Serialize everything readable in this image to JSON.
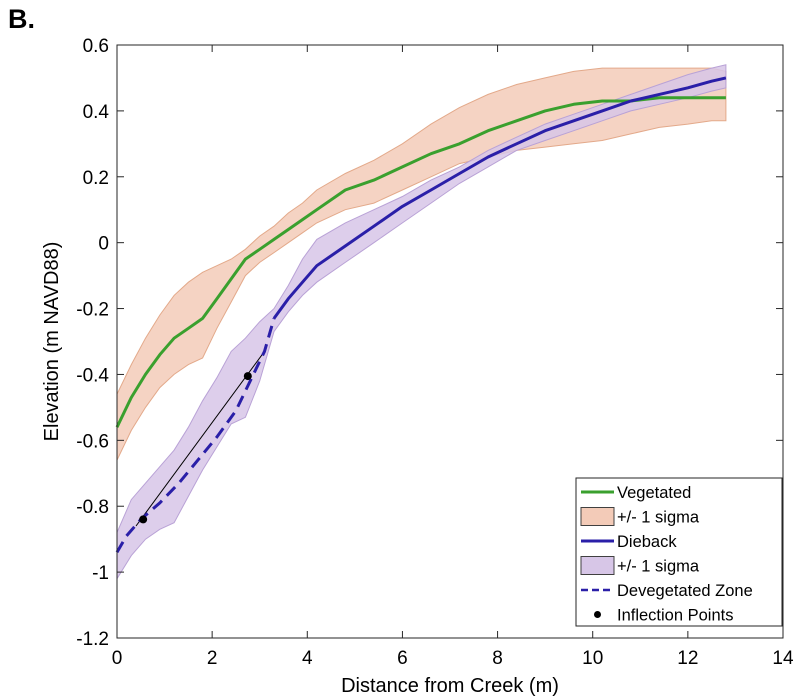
{
  "panel_label": "B.",
  "chart_data": {
    "type": "line",
    "xlabel": "Distance from Creek (m)",
    "ylabel": "Elevation (m NAVD88)",
    "xlim": [
      0,
      14
    ],
    "ylim": [
      -1.2,
      0.6
    ],
    "xticks": [
      0,
      2,
      4,
      6,
      8,
      10,
      12,
      14
    ],
    "yticks": [
      -1.2,
      -1,
      -0.8,
      -0.6,
      -0.4,
      -0.2,
      0,
      0.2,
      0.4,
      0.6
    ],
    "xtick_labels": [
      "0",
      "2",
      "4",
      "6",
      "8",
      "10",
      "12",
      "14"
    ],
    "ytick_labels": [
      "-1.2",
      "-1",
      "-0.8",
      "-0.6",
      "-0.4",
      "-0.2",
      "0",
      "0.2",
      "0.4",
      "0.6"
    ],
    "grid": false,
    "legend_position": "bottom-right",
    "series": [
      {
        "name": "Vegetated",
        "kind": "line",
        "color": "#3aa02e",
        "x": [
          0,
          0.3,
          0.6,
          0.9,
          1.2,
          1.5,
          1.8,
          2.1,
          2.4,
          2.7,
          3.0,
          3.3,
          3.6,
          3.9,
          4.2,
          4.8,
          5.4,
          6.0,
          6.6,
          7.2,
          7.8,
          8.4,
          9.0,
          9.6,
          10.2,
          10.8,
          11.4,
          12.0,
          12.5,
          12.8
        ],
        "y": [
          -0.56,
          -0.47,
          -0.4,
          -0.34,
          -0.29,
          -0.26,
          -0.23,
          -0.17,
          -0.11,
          -0.05,
          -0.02,
          0.01,
          0.04,
          0.07,
          0.1,
          0.16,
          0.19,
          0.23,
          0.27,
          0.3,
          0.34,
          0.37,
          0.4,
          0.42,
          0.43,
          0.43,
          0.44,
          0.44,
          0.44,
          0.44
        ]
      },
      {
        "name": "+/- 1 sigma",
        "kind": "band",
        "fill": "#f3cbb8",
        "edge": "#e3a98a",
        "x": [
          0,
          0.3,
          0.6,
          0.9,
          1.2,
          1.5,
          1.8,
          2.1,
          2.4,
          2.7,
          3.0,
          3.3,
          3.6,
          3.9,
          4.2,
          4.8,
          5.4,
          6.0,
          6.6,
          7.2,
          7.8,
          8.4,
          9.0,
          9.6,
          10.2,
          10.8,
          11.4,
          12.0,
          12.5,
          12.8
        ],
        "upper": [
          -0.46,
          -0.37,
          -0.29,
          -0.22,
          -0.16,
          -0.12,
          -0.09,
          -0.07,
          -0.05,
          -0.02,
          0.02,
          0.05,
          0.09,
          0.12,
          0.16,
          0.21,
          0.25,
          0.3,
          0.36,
          0.41,
          0.45,
          0.48,
          0.5,
          0.52,
          0.53,
          0.53,
          0.53,
          0.53,
          0.53,
          0.52
        ],
        "lower": [
          -0.66,
          -0.57,
          -0.5,
          -0.44,
          -0.4,
          -0.37,
          -0.35,
          -0.26,
          -0.18,
          -0.1,
          -0.06,
          -0.03,
          0.0,
          0.03,
          0.06,
          0.1,
          0.12,
          0.16,
          0.2,
          0.24,
          0.26,
          0.28,
          0.29,
          0.3,
          0.31,
          0.33,
          0.35,
          0.36,
          0.37,
          0.37
        ]
      },
      {
        "name": "Dieback",
        "kind": "line",
        "color": "#2a1fa8",
        "x": [
          3.3,
          3.6,
          3.9,
          4.2,
          4.8,
          5.4,
          6.0,
          6.6,
          7.2,
          7.8,
          8.4,
          9.0,
          9.6,
          10.2,
          10.8,
          11.4,
          12.0,
          12.5,
          12.8
        ],
        "y": [
          -0.23,
          -0.17,
          -0.12,
          -0.07,
          -0.01,
          0.05,
          0.11,
          0.16,
          0.21,
          0.26,
          0.3,
          0.34,
          0.37,
          0.4,
          0.43,
          0.45,
          0.47,
          0.49,
          0.5
        ]
      },
      {
        "name": "+/- 1 sigma",
        "kind": "band",
        "fill": "#d7c6e7",
        "edge": "#b9a2d6",
        "x": [
          0,
          0.3,
          0.6,
          0.9,
          1.2,
          1.5,
          1.8,
          2.1,
          2.4,
          2.7,
          3.0,
          3.3,
          3.6,
          3.9,
          4.2,
          4.8,
          5.4,
          6.0,
          6.6,
          7.2,
          7.8,
          8.4,
          9.0,
          9.6,
          10.2,
          10.8,
          11.4,
          12.0,
          12.5,
          12.8
        ],
        "upper": [
          -0.88,
          -0.78,
          -0.73,
          -0.68,
          -0.63,
          -0.56,
          -0.48,
          -0.41,
          -0.33,
          -0.29,
          -0.24,
          -0.2,
          -0.13,
          -0.05,
          0.01,
          0.06,
          0.1,
          0.14,
          0.19,
          0.23,
          0.28,
          0.32,
          0.36,
          0.39,
          0.42,
          0.45,
          0.48,
          0.51,
          0.53,
          0.54
        ],
        "lower": [
          -1.02,
          -0.95,
          -0.9,
          -0.87,
          -0.85,
          -0.77,
          -0.69,
          -0.62,
          -0.55,
          -0.53,
          -0.42,
          -0.27,
          -0.21,
          -0.16,
          -0.12,
          -0.06,
          0.0,
          0.06,
          0.12,
          0.18,
          0.23,
          0.28,
          0.31,
          0.34,
          0.37,
          0.4,
          0.42,
          0.44,
          0.46,
          0.47
        ]
      },
      {
        "name": "Devegetated Zone",
        "kind": "dashed",
        "color": "#2a1fa8",
        "x": [
          0,
          0.2,
          0.5,
          0.9,
          1.3,
          1.7,
          2.1,
          2.5,
          2.8,
          3.1,
          3.3
        ],
        "y": [
          -0.94,
          -0.89,
          -0.84,
          -0.79,
          -0.73,
          -0.66,
          -0.59,
          -0.51,
          -0.42,
          -0.33,
          -0.23
        ]
      },
      {
        "name": "Inflection Points",
        "kind": "points",
        "color": "#000000",
        "x": [
          0.55,
          2.75
        ],
        "y": [
          -0.84,
          -0.405
        ]
      }
    ],
    "annotations": [
      {
        "kind": "segment",
        "color": "#000000",
        "x": [
          0.4,
          3.05
        ],
        "y": [
          -0.86,
          -0.34
        ]
      }
    ]
  }
}
